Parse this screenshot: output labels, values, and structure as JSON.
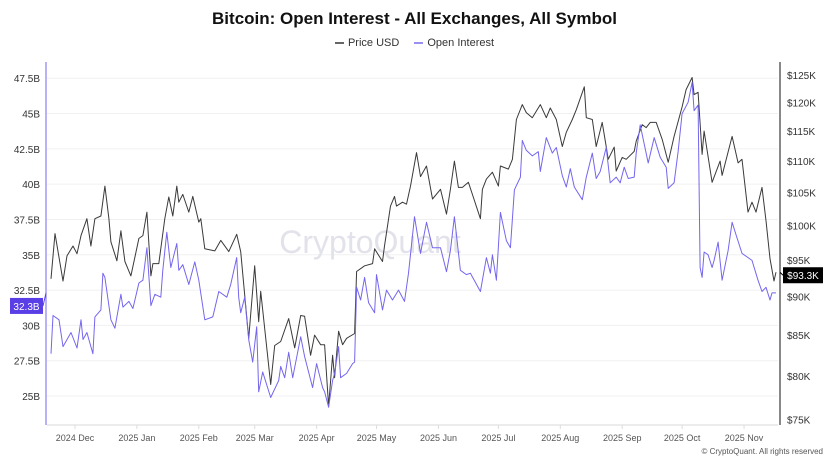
{
  "chart_data": {
    "type": "line",
    "title": "Bitcoin: Open Interest - All Exchanges, All Symbol",
    "x_unit": "days since 2024-11-17",
    "x_tick_labels": [
      "2024 Dec",
      "2025 Jan",
      "2025 Feb",
      "2025 Mar",
      "2025 Apr",
      "2025 May",
      "2025 Jun",
      "2025 Jul",
      "2025 Aug",
      "2025 Sep",
      "2025 Oct",
      "2025 Nov"
    ],
    "x_tick_days": [
      14,
      45,
      76,
      104,
      135,
      165,
      196,
      226,
      257,
      288,
      318,
      349
    ],
    "xlim": [
      0,
      366
    ],
    "left_axis": {
      "label": "Open Interest",
      "scale": "linear",
      "ylim": [
        22.95,
        48.65
      ],
      "ticks": [
        25,
        27.5,
        30,
        32.5,
        35,
        37.5,
        40,
        42.5,
        45,
        47.5
      ],
      "tick_labels": [
        "25B",
        "27.5B",
        "30B",
        "32.5B",
        "35B",
        "37.5B",
        "40B",
        "42.5B",
        "45B",
        "47.5B"
      ]
    },
    "right_axis": {
      "label": "Price USD",
      "scale": "log",
      "ylim": [
        74.4,
        127.4
      ],
      "ticks": [
        75,
        80,
        85,
        90,
        95,
        100,
        105,
        110,
        115,
        120,
        125
      ],
      "tick_labels": [
        "$75K",
        "$80K",
        "$85K",
        "$90K",
        "$95K",
        "$100K",
        "$105K",
        "$110K",
        "$115K",
        "$120K",
        "$125K"
      ]
    },
    "grid": true,
    "legend": {
      "placement": "top-center",
      "entries": [
        "Price USD",
        "Open Interest"
      ]
    },
    "series": [
      {
        "name": "Price USD",
        "axis": "right",
        "unit": "$K",
        "color": "#3a3a3a",
        "x": [
          2,
          4,
          8,
          10,
          13,
          15,
          17,
          20,
          22,
          24,
          27,
          29,
          31,
          32,
          35,
          37,
          39,
          42,
          46,
          48,
          50,
          52,
          53,
          56,
          59,
          61,
          63,
          65,
          66,
          68,
          71,
          73,
          76,
          77,
          79,
          84,
          87,
          91,
          95,
          97,
          101,
          104,
          106,
          107,
          112,
          114,
          117,
          121,
          124,
          127,
          129,
          132,
          134,
          137,
          139,
          141,
          143,
          144,
          146,
          148,
          150,
          154,
          155,
          159,
          163,
          164,
          168,
          169,
          172,
          174,
          175,
          178,
          180,
          182,
          185,
          187,
          190,
          193,
          197,
          200,
          202,
          204,
          206,
          208,
          211,
          213,
          217,
          218,
          220,
          223,
          226,
          227,
          231,
          233,
          235,
          238,
          240,
          243,
          247,
          250,
          252,
          255,
          258,
          260,
          263,
          265,
          269,
          270,
          273,
          275,
          278,
          280,
          281,
          284,
          285,
          288,
          290,
          294,
          295,
          298,
          300,
          302,
          305,
          308,
          311,
          314,
          318,
          320,
          323,
          324,
          326,
          328,
          329,
          333,
          337,
          338,
          343,
          346,
          348,
          351,
          353,
          355,
          358,
          360,
          362,
          364,
          365
        ],
        "y": [
          92.4,
          98.8,
          92.1,
          95.6,
          97.0,
          95.9,
          98.5,
          101.0,
          97.0,
          101.0,
          101.4,
          106.0,
          101.0,
          97.6,
          94.9,
          99.2,
          94.8,
          92.8,
          98.1,
          98.5,
          102.0,
          92.8,
          94.5,
          94.5,
          101.0,
          104.3,
          101.4,
          106.0,
          103.5,
          104.7,
          102.0,
          104.4,
          100.5,
          101.0,
          96.6,
          96.3,
          97.8,
          96.2,
          98.7,
          96.2,
          84.6,
          94.2,
          86.7,
          90.7,
          79.0,
          83.7,
          84.2,
          87.1,
          83.4,
          87.5,
          87.4,
          82.5,
          85.0,
          83.8,
          83.8,
          76.5,
          82.5,
          79.8,
          85.5,
          83.8,
          84.6,
          85.2,
          93.4,
          94.2,
          94.5,
          96.6,
          94.8,
          97.0,
          102.9,
          104.4,
          102.9,
          103.5,
          103.2,
          106.0,
          111.4,
          107.5,
          109.2,
          104.0,
          105.5,
          101.7,
          105.5,
          110.0,
          105.8,
          105.8,
          106.6,
          104.7,
          101.0,
          105.5,
          107.1,
          108.2,
          106.0,
          109.2,
          108.7,
          110.3,
          117.0,
          119.6,
          118.2,
          117.3,
          119.6,
          117.3,
          119.0,
          117.0,
          112.4,
          114.8,
          117.0,
          118.7,
          122.8,
          117.3,
          117.0,
          112.4,
          116.5,
          112.4,
          110.3,
          112.3,
          108.4,
          110.6,
          110.3,
          111.6,
          113.3,
          116.1,
          115.6,
          116.5,
          116.5,
          113.6,
          109.8,
          114.1,
          119.2,
          122.3,
          124.5,
          121.4,
          121.8,
          111.1,
          115.0,
          106.6,
          110.0,
          107.7,
          114.1,
          109.7,
          110.3,
          102.0,
          103.5,
          102.0,
          105.8,
          100.7,
          95.2,
          92.1,
          93.3
        ],
        "last_label": "$93.3K"
      },
      {
        "name": "Open Interest",
        "axis": "left",
        "unit": "B",
        "color": "#7466ee",
        "x": [
          2,
          3,
          6,
          8,
          12,
          15,
          17,
          18,
          20,
          23,
          24,
          27,
          28,
          29,
          32,
          34,
          37,
          38,
          41,
          43,
          46,
          48,
          50,
          52,
          54,
          57,
          58,
          60,
          62,
          65,
          66,
          68,
          71,
          74,
          76,
          79,
          83,
          86,
          90,
          92,
          95,
          96,
          97,
          99,
          101,
          103,
          105,
          106,
          108,
          112,
          116,
          117,
          119,
          121,
          123,
          127,
          129,
          133,
          135,
          138,
          139,
          141,
          143,
          144,
          146,
          147,
          150,
          153,
          154,
          155,
          157,
          159,
          161,
          164,
          165,
          168,
          170,
          173,
          176,
          179,
          181,
          184,
          187,
          190,
          193,
          197,
          200,
          202,
          204,
          207,
          210,
          212,
          217,
          220,
          222,
          223,
          225,
          227,
          230,
          232,
          234,
          237,
          238,
          240,
          243,
          246,
          247,
          250,
          253,
          255,
          258,
          260,
          262,
          264,
          268,
          270,
          273,
          275,
          277,
          280,
          282,
          285,
          287,
          289,
          291,
          294,
          295,
          297,
          301,
          304,
          307,
          310,
          311,
          314,
          316,
          318,
          321,
          323,
          324,
          326,
          327,
          328,
          329,
          331,
          333,
          334,
          336,
          338,
          341,
          343,
          345,
          348,
          353,
          356,
          358,
          360,
          362,
          363,
          365
        ],
        "y": [
          28.0,
          30.7,
          30.4,
          28.5,
          29.5,
          28.4,
          30.4,
          29.0,
          29.5,
          28.0,
          30.6,
          31.1,
          33.7,
          33.4,
          30.4,
          29.8,
          32.2,
          31.3,
          31.7,
          31.2,
          33.0,
          33.2,
          35.5,
          31.4,
          32.2,
          32.0,
          33.9,
          36.6,
          34.1,
          35.8,
          33.9,
          34.3,
          32.9,
          34.5,
          33.2,
          30.4,
          30.6,
          32.4,
          32.0,
          32.9,
          34.8,
          32.0,
          30.9,
          32.0,
          29.0,
          27.4,
          29.9,
          25.3,
          26.7,
          24.9,
          26.1,
          27.1,
          26.3,
          28.1,
          26.3,
          29.2,
          27.8,
          25.6,
          27.3,
          25.6,
          25.3,
          24.2,
          26.1,
          26.6,
          28.5,
          26.3,
          26.6,
          27.3,
          27.4,
          32.7,
          31.8,
          33.4,
          31.6,
          30.9,
          33.6,
          31.1,
          32.5,
          31.8,
          32.5,
          31.7,
          33.7,
          37.7,
          35.1,
          37.3,
          35.5,
          35.5,
          33.8,
          35.3,
          37.7,
          33.9,
          33.6,
          33.7,
          32.4,
          34.8,
          33.7,
          35.0,
          33.2,
          38.0,
          36.0,
          35.5,
          39.6,
          40.5,
          43.1,
          42.4,
          42.0,
          42.3,
          40.9,
          43.3,
          42.2,
          42.6,
          40.6,
          39.8,
          41.1,
          39.8,
          38.9,
          40.5,
          42.2,
          40.4,
          40.9,
          42.6,
          40.1,
          40.5,
          40.1,
          41.2,
          40.4,
          40.5,
          42.2,
          44.2,
          41.5,
          43.3,
          41.9,
          41.2,
          39.7,
          40.1,
          42.3,
          45.0,
          45.8,
          47.2,
          45.2,
          45.6,
          34.1,
          33.4,
          35.2,
          35.0,
          34.1,
          34.6,
          35.9,
          33.2,
          35.3,
          37.3,
          36.4,
          35.1,
          34.6,
          33.2,
          32.4,
          32.7,
          31.8,
          32.3,
          32.3
        ],
        "last_label": "32.3B"
      }
    ]
  },
  "watermark": "CryptoQuant",
  "footer": "© CryptoQuant. All rights reserved",
  "colors": {
    "price": "#3a3a3a",
    "oi": "#7466ee",
    "oi_badge": "#5a3fe6",
    "price_badge": "#000000"
  }
}
